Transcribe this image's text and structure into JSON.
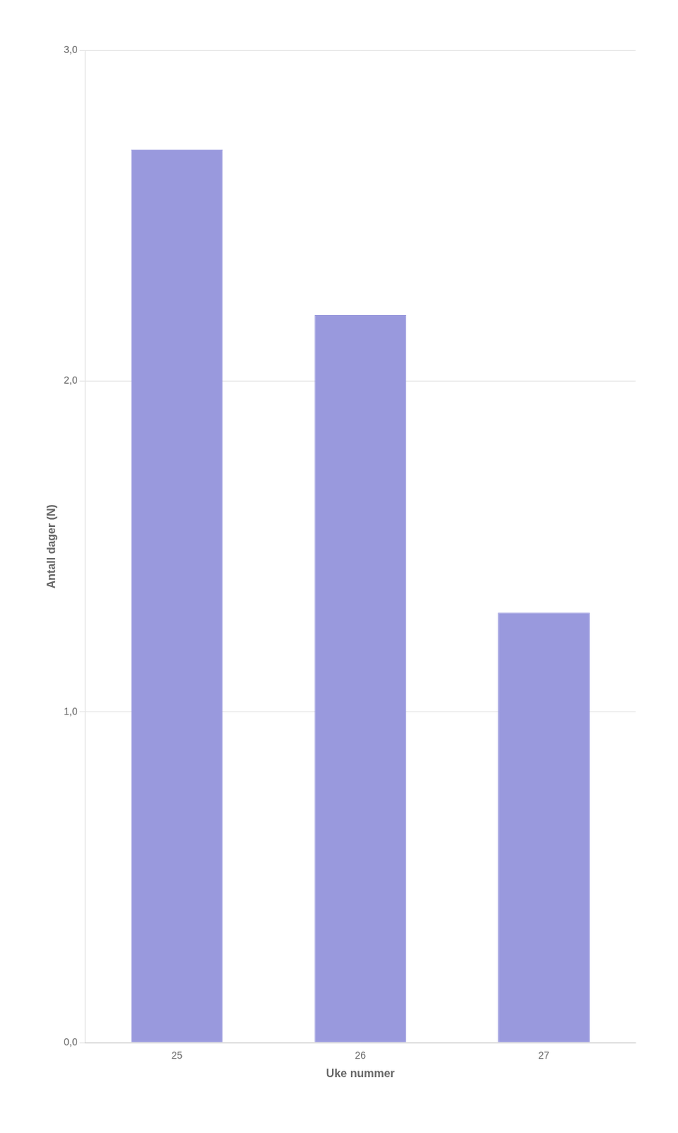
{
  "chart_data": {
    "type": "bar",
    "categories": [
      "25",
      "26",
      "27"
    ],
    "values": [
      2.7,
      2.2,
      1.3
    ],
    "color": "#9999dd",
    "xlabel": "Uke nummer",
    "ylabel": "Antall dager (N)",
    "ylim": [
      0,
      3.0
    ],
    "yticks": [
      {
        "value": 0.0,
        "label": "0,0"
      },
      {
        "value": 1.0,
        "label": "1,0"
      },
      {
        "value": 2.0,
        "label": "2,0"
      },
      {
        "value": 3.0,
        "label": "3,0"
      }
    ],
    "grid": true
  }
}
